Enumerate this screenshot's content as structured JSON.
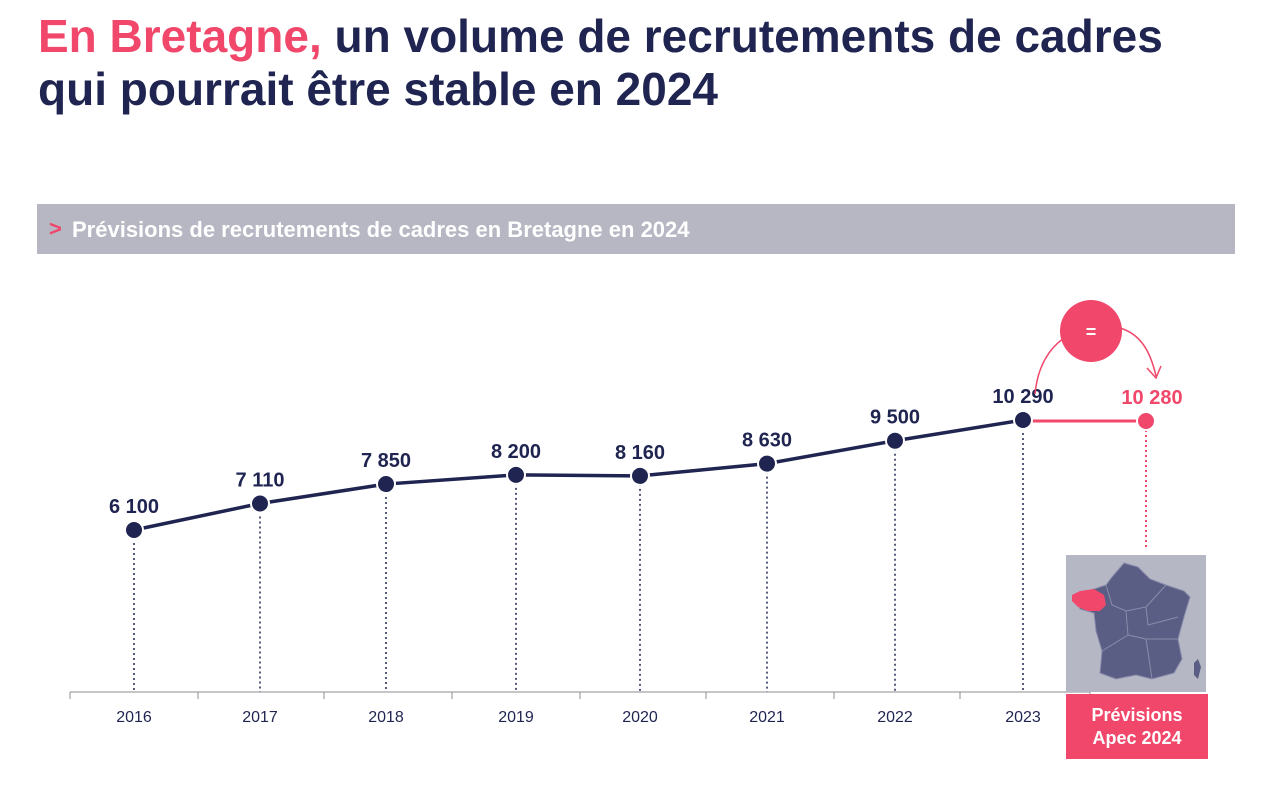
{
  "title": {
    "accent": "En Bretagne,",
    "rest": " un volume de recrutements de cadres qui pourrait être stable en 2024"
  },
  "subtitle": {
    "chevron": ">",
    "text": "Prévisions de recrutements de cadres en Bretagne en 2024"
  },
  "forecast": {
    "line1": "Prévisions",
    "line2": "Apec 2024",
    "badge": "="
  },
  "colors": {
    "navy": "#1f2450",
    "accent": "#f0476b",
    "grey": "#b6b7c3"
  },
  "chart_data": {
    "type": "line",
    "title": "Prévisions de recrutements de cadres en Bretagne en 2024",
    "x": [
      "2016",
      "2017",
      "2018",
      "2019",
      "2020",
      "2021",
      "2022",
      "2023"
    ],
    "series": [
      {
        "values": [
          6100,
          7110,
          7850,
          8200,
          8160,
          8630,
          9500,
          10290
        ],
        "labels": [
          "6 100",
          "7 110",
          "7 850",
          "8 200",
          "8 160",
          "8 630",
          "9 500",
          "10 290"
        ],
        "color": "#1f2450"
      }
    ],
    "forecast_point": {
      "value": 10280,
      "label": "10 280",
      "color": "#f0476b"
    },
    "grid": false,
    "legend": "none"
  }
}
